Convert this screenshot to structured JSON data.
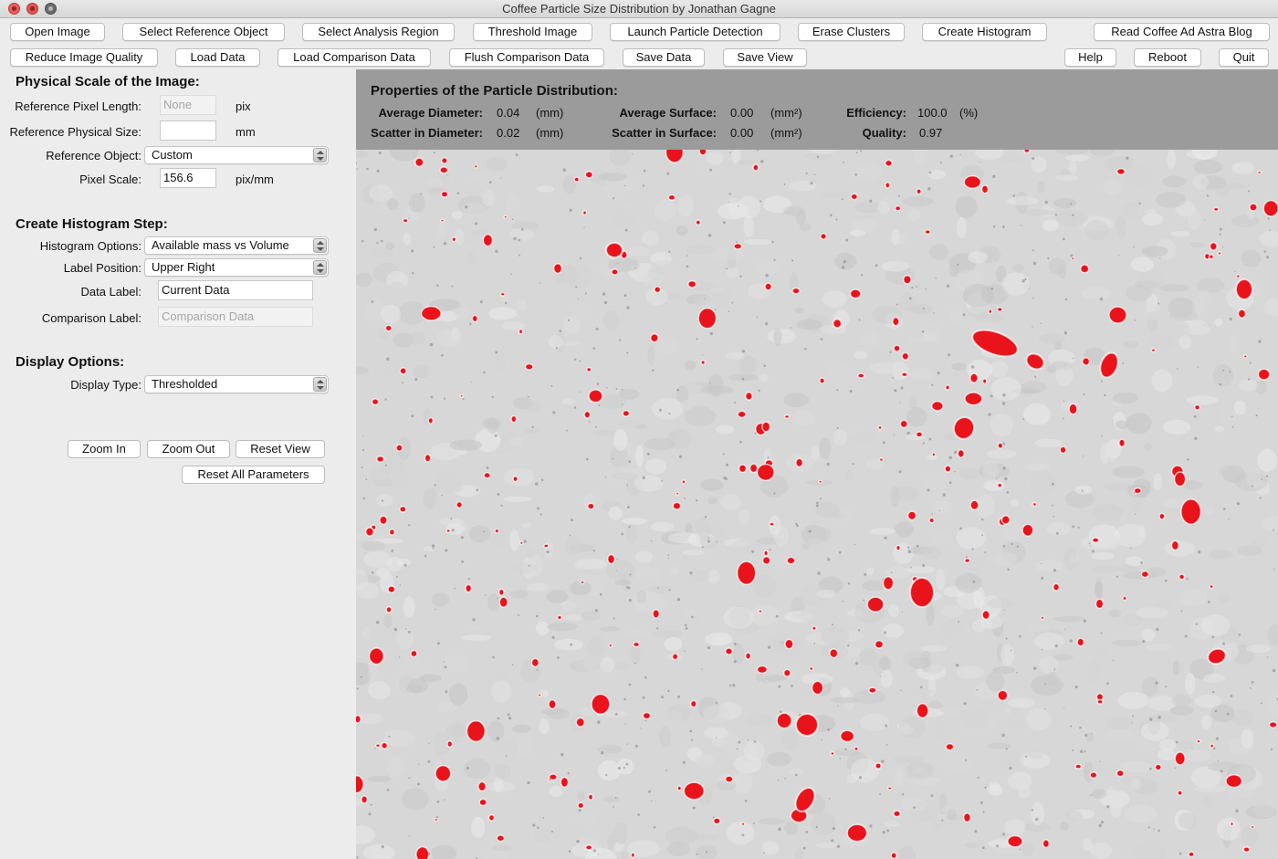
{
  "window": {
    "title": "Coffee Particle Size Distribution by Jonathan Gagne"
  },
  "toolbar": {
    "row1": [
      "Open Image",
      "Select Reference Object",
      "Select Analysis Region",
      "Threshold Image",
      "Launch Particle Detection",
      "Erase Clusters",
      "Create Histogram",
      "Read Coffee Ad Astra Blog"
    ],
    "row2": [
      "Reduce Image Quality",
      "Load Data",
      "Load Comparison Data",
      "Flush Comparison Data",
      "Save Data",
      "Save View",
      "Help",
      "Reboot",
      "Quit"
    ]
  },
  "scale": {
    "heading": "Physical Scale of the Image:",
    "ref_pixel_length_label": "Reference Pixel Length:",
    "ref_pixel_length_placeholder": "None",
    "ref_pixel_length_unit": "pix",
    "ref_physical_size_label": "Reference Physical Size:",
    "ref_physical_size_value": "",
    "ref_physical_size_unit": "mm",
    "ref_object_label": "Reference Object:",
    "ref_object_value": "Custom",
    "pixel_scale_label": "Pixel Scale:",
    "pixel_scale_value": "156.6",
    "pixel_scale_unit": "pix/mm"
  },
  "histogram": {
    "heading": "Create Histogram Step:",
    "options_label": "Histogram Options:",
    "options_value": "Available mass vs Volume",
    "label_position_label": "Label Position:",
    "label_position_value": "Upper Right",
    "data_label_label": "Data Label:",
    "data_label_value": "Current Data",
    "comparison_label_label": "Comparison Label:",
    "comparison_label_placeholder": "Comparison Data"
  },
  "display": {
    "heading": "Display Options:",
    "type_label": "Display Type:",
    "type_value": "Thresholded"
  },
  "view_buttons": {
    "zoom_in": "Zoom In",
    "zoom_out": "Zoom Out",
    "reset_view": "Reset View",
    "reset_all": "Reset All Parameters"
  },
  "properties": {
    "title": "Properties of the Particle Distribution:",
    "avg_diameter_label": "Average Diameter:",
    "avg_diameter_value": "0.04",
    "avg_diameter_unit": "(mm)",
    "scatter_diameter_label": "Scatter in Diameter:",
    "scatter_diameter_value": "0.02",
    "scatter_diameter_unit": "(mm)",
    "avg_surface_label": "Average Surface:",
    "avg_surface_value": "0.00",
    "avg_surface_unit": "(mm²)",
    "scatter_surface_label": "Scatter in Surface:",
    "scatter_surface_value": "0.00",
    "scatter_surface_unit": "(mm²)",
    "efficiency_label": "Efficiency:",
    "efficiency_value": "100.0",
    "efficiency_unit": "(%)",
    "quality_label": "Quality:",
    "quality_value": "0.97"
  },
  "image_view": {
    "particle_color": "#e8131b",
    "background_color": "#d7d7d7"
  }
}
